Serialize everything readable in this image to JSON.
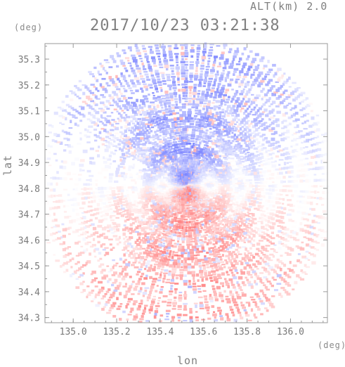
{
  "chart_data": {
    "type": "heatmap",
    "title": "2017/10/23 03:21:38",
    "subtitle": "ALT(km) 2.0",
    "xlabel": "lon",
    "ylabel": "lat",
    "x_unit": "(deg)",
    "y_unit": "(deg)",
    "xlim": [
      134.87,
      136.17
    ],
    "ylim": [
      34.28,
      35.36
    ],
    "x_ticks": [
      135.0,
      135.2,
      135.4,
      135.6,
      135.8,
      136.0
    ],
    "x_tick_labels": [
      "135.0",
      "135.2",
      "135.4",
      "135.6",
      "135.8",
      "136.0"
    ],
    "y_ticks": [
      34.3,
      34.4,
      34.5,
      34.6,
      34.7,
      34.8,
      34.9,
      35.0,
      35.1,
      35.2,
      35.3
    ],
    "y_tick_labels": [
      "34.3",
      "34.4",
      "34.5",
      "34.6",
      "34.7",
      "34.8",
      "34.9",
      "35.0",
      "35.1",
      "35.2",
      "35.3"
    ],
    "radar_center": [
      135.52,
      34.81
    ],
    "field_description": "Doppler radial velocity: blue (approaching) dominates north of the radar, red (receding) dominates south",
    "colors": {
      "negative_strong": "#6f78ff",
      "negative_weak": "#d6d9ff",
      "neutral": "#ffffff",
      "positive_weak": "#ffd6d6",
      "positive_strong": "#ff7a7a",
      "axis": "#9a9a9a"
    }
  }
}
